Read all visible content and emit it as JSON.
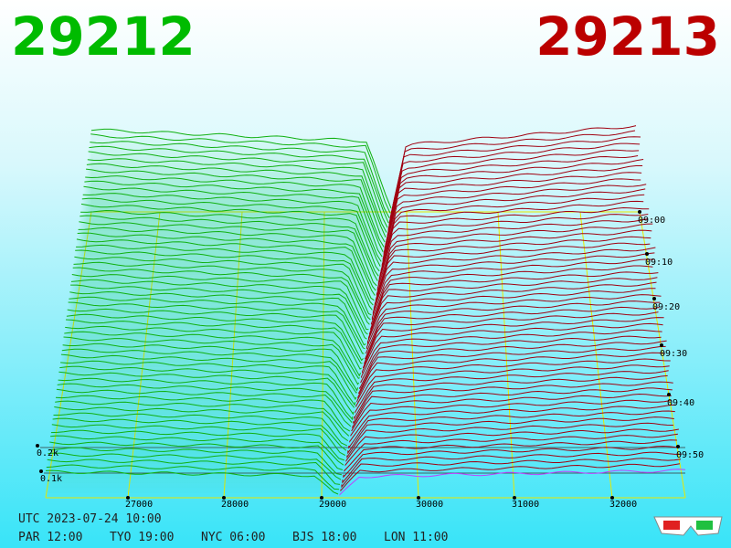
{
  "header": {
    "bid": "29212",
    "ask": "29213"
  },
  "price_axis": {
    "ticks": [
      "27000",
      "28000",
      "29000",
      "30000",
      "31000",
      "32000"
    ]
  },
  "time_axis": {
    "ticks": [
      "09:00",
      "09:10",
      "09:20",
      "09:30",
      "09:40",
      "09:50"
    ]
  },
  "depth_axis": {
    "ticks": [
      "0.2k",
      "0.1k"
    ]
  },
  "footer": {
    "utc": "UTC 2023-07-24 10:00",
    "clocks": [
      "PAR 12:00",
      "TYO 19:00",
      "NYC 06:00",
      "BJS 18:00",
      "LON 11:00"
    ]
  }
}
